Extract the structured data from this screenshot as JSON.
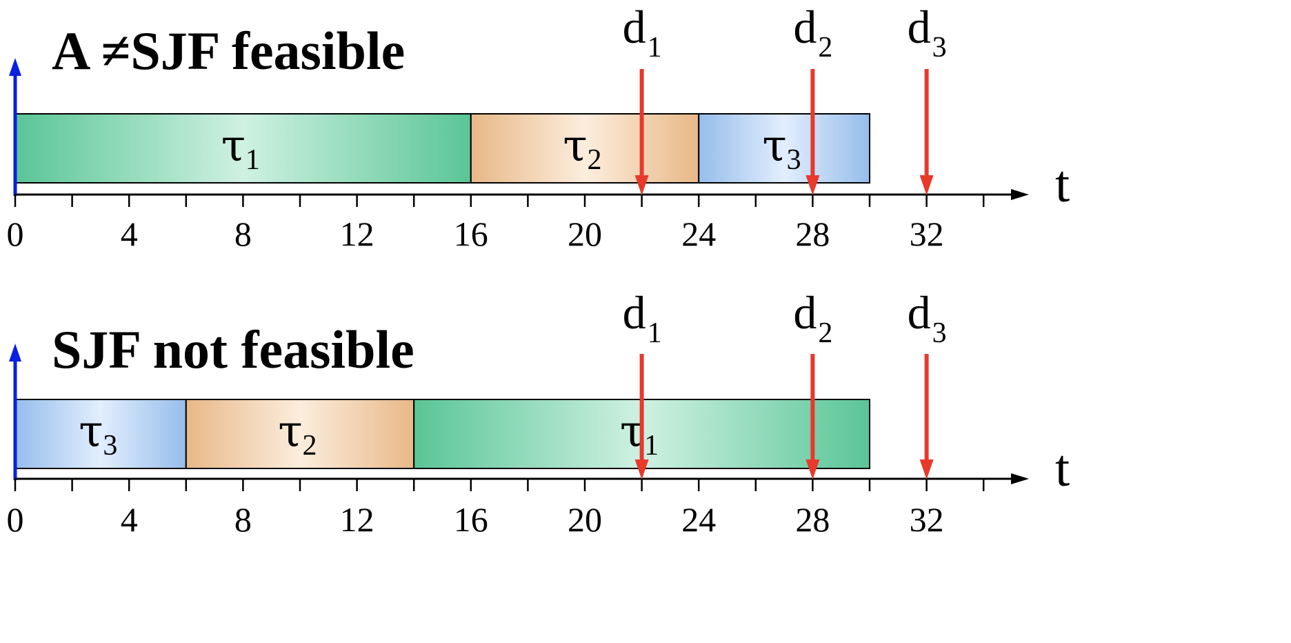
{
  "colors": {
    "tau1": "#5fcf9e",
    "tau2": "#f4c28f",
    "tau3": "#9ec7f7",
    "deadline": "#e8392b",
    "time_axis": "#000000",
    "vertical_axis": "#0a1fe0"
  },
  "time_unit_max": 34,
  "tick_labels": [
    "0",
    "4",
    "8",
    "12",
    "16",
    "20",
    "24",
    "28",
    "32"
  ],
  "task_symbol": "τ",
  "deadline_symbol": "d",
  "axis_label": "t",
  "panels": [
    {
      "title": "A ≠SJF  feasible",
      "tasks": [
        {
          "id": "tau1",
          "sub": "1",
          "start": 0,
          "end": 16
        },
        {
          "id": "tau2",
          "sub": "2",
          "start": 16,
          "end": 24
        },
        {
          "id": "tau3",
          "sub": "3",
          "start": 24,
          "end": 30
        }
      ],
      "deadlines": [
        {
          "sub": "1",
          "time": 22
        },
        {
          "sub": "2",
          "time": 28
        },
        {
          "sub": "3",
          "time": 32
        }
      ]
    },
    {
      "title": "SJF not feasible",
      "tasks": [
        {
          "id": "tau3",
          "sub": "3",
          "start": 0,
          "end": 6
        },
        {
          "id": "tau2",
          "sub": "2",
          "start": 6,
          "end": 14
        },
        {
          "id": "tau1",
          "sub": "1",
          "start": 14,
          "end": 30
        }
      ],
      "deadlines": [
        {
          "sub": "1",
          "time": 22
        },
        {
          "sub": "2",
          "time": 28
        },
        {
          "sub": "3",
          "time": 32
        }
      ]
    }
  ]
}
